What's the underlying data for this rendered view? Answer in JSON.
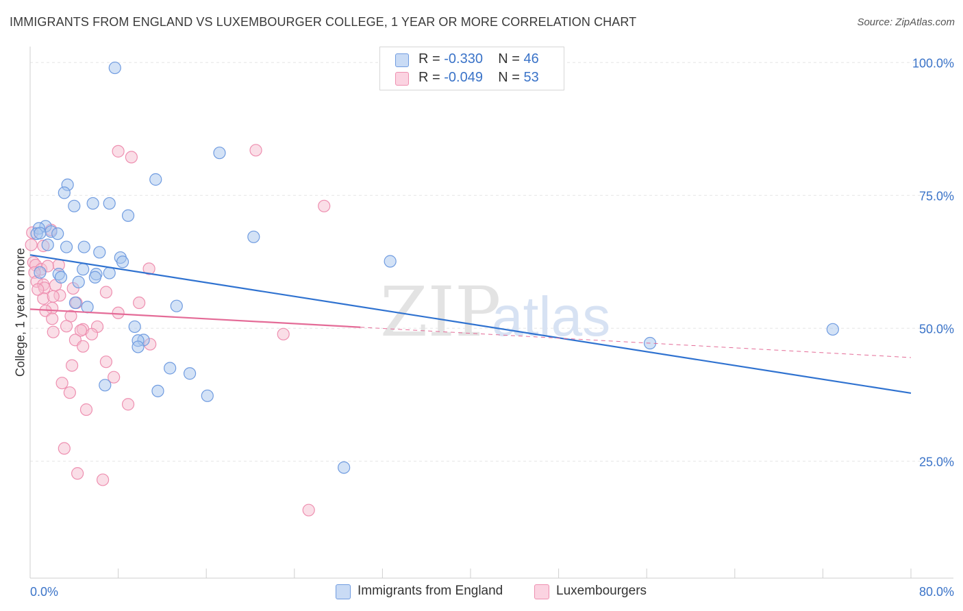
{
  "title": "IMMIGRANTS FROM ENGLAND VS LUXEMBOURGER COLLEGE, 1 YEAR OR MORE CORRELATION CHART",
  "source": "Source: ZipAtlas.com",
  "watermark": {
    "zip": "ZIP",
    "atlas": "atlas"
  },
  "colors": {
    "blue_fill": "#a8c6ee",
    "blue_stroke": "#6f9be0",
    "blue_line": "#2f72d0",
    "pink_fill": "#f6bdd0",
    "pink_stroke": "#ee8fb0",
    "pink_line": "#e46b97",
    "tick_label": "#3a73c8",
    "grid": "#e6e6e6"
  },
  "legend": [
    {
      "r_label": "R =",
      "r_value": "-0.330",
      "n_label": "N =",
      "n_value": "46"
    },
    {
      "r_label": "R =",
      "r_value": "-0.049",
      "n_label": "N =",
      "n_value": "53"
    }
  ],
  "chart_data": {
    "type": "scatter",
    "title": "IMMIGRANTS FROM ENGLAND VS LUXEMBOURGER COLLEGE, 1 YEAR OR MORE CORRELATION CHART",
    "xlabel": "",
    "ylabel": "College, 1 year or more",
    "xlim": [
      0,
      80
    ],
    "ylim": [
      3,
      103
    ],
    "x_tick_labels": [
      {
        "value": 0,
        "label": "0.0%"
      },
      {
        "value": 80,
        "label": "80.0%"
      }
    ],
    "y_tick_labels": [
      {
        "value": 100,
        "label": "100.0%"
      },
      {
        "value": 75,
        "label": "75.0%"
      },
      {
        "value": 50,
        "label": "50.0%"
      },
      {
        "value": 25,
        "label": "25.0%"
      }
    ],
    "y_gridlines": [
      100,
      75,
      50,
      25
    ],
    "x_minor_ticks": [
      8,
      16,
      24,
      32,
      40,
      48,
      56,
      64,
      72,
      80
    ],
    "series": [
      {
        "name": "Immigrants from England",
        "color": "blue",
        "points": [
          [
            7.7,
            99.0
          ],
          [
            17.2,
            83.0
          ],
          [
            11.4,
            78.0
          ],
          [
            3.4,
            77.0
          ],
          [
            3.1,
            75.5
          ],
          [
            4.0,
            73.0
          ],
          [
            7.2,
            73.5
          ],
          [
            5.7,
            73.5
          ],
          [
            8.9,
            71.2
          ],
          [
            20.3,
            67.2
          ],
          [
            1.4,
            69.2
          ],
          [
            0.8,
            68.8
          ],
          [
            1.9,
            68.2
          ],
          [
            0.6,
            67.8
          ],
          [
            2.5,
            67.8
          ],
          [
            1.6,
            65.7
          ],
          [
            3.3,
            65.3
          ],
          [
            4.9,
            65.3
          ],
          [
            6.3,
            64.3
          ],
          [
            8.2,
            63.3
          ],
          [
            8.4,
            62.5
          ],
          [
            32.7,
            62.6
          ],
          [
            4.8,
            61.1
          ],
          [
            2.6,
            60.2
          ],
          [
            2.8,
            59.6
          ],
          [
            6.0,
            60.2
          ],
          [
            7.2,
            60.4
          ],
          [
            5.9,
            59.6
          ],
          [
            4.4,
            58.7
          ],
          [
            4.1,
            54.8
          ],
          [
            5.2,
            54.0
          ],
          [
            13.3,
            54.2
          ],
          [
            9.5,
            50.3
          ],
          [
            72.9,
            49.8
          ],
          [
            10.3,
            47.8
          ],
          [
            9.8,
            47.7
          ],
          [
            56.3,
            47.2
          ],
          [
            9.8,
            46.5
          ],
          [
            12.7,
            42.5
          ],
          [
            14.5,
            41.5
          ],
          [
            6.8,
            39.3
          ],
          [
            11.6,
            38.2
          ],
          [
            16.1,
            37.3
          ],
          [
            28.5,
            23.8
          ],
          [
            0.9,
            67.9
          ],
          [
            0.9,
            60.5
          ]
        ]
      },
      {
        "name": "Luxembourgers",
        "color": "pink",
        "points": [
          [
            20.5,
            83.5
          ],
          [
            8.0,
            83.3
          ],
          [
            9.2,
            82.2
          ],
          [
            26.7,
            73.0
          ],
          [
            0.2,
            68.0
          ],
          [
            1.9,
            68.5
          ],
          [
            0.1,
            65.7
          ],
          [
            1.2,
            65.5
          ],
          [
            0.3,
            62.4
          ],
          [
            0.5,
            61.9
          ],
          [
            2.6,
            61.9
          ],
          [
            10.8,
            61.2
          ],
          [
            1.0,
            61.1
          ],
          [
            0.4,
            60.5
          ],
          [
            0.6,
            58.8
          ],
          [
            1.2,
            58.2
          ],
          [
            2.3,
            58.1
          ],
          [
            1.3,
            57.6
          ],
          [
            3.9,
            57.5
          ],
          [
            6.9,
            56.8
          ],
          [
            2.7,
            56.2
          ],
          [
            1.2,
            55.6
          ],
          [
            2.1,
            56.0
          ],
          [
            9.9,
            54.8
          ],
          [
            4.2,
            54.8
          ],
          [
            2.0,
            53.8
          ],
          [
            1.4,
            53.3
          ],
          [
            8.0,
            52.9
          ],
          [
            3.7,
            52.3
          ],
          [
            2.0,
            51.8
          ],
          [
            3.3,
            50.4
          ],
          [
            6.1,
            50.3
          ],
          [
            4.8,
            49.8
          ],
          [
            2.1,
            49.3
          ],
          [
            4.6,
            49.6
          ],
          [
            5.6,
            48.9
          ],
          [
            23.0,
            48.9
          ],
          [
            4.1,
            47.8
          ],
          [
            10.9,
            47.0
          ],
          [
            4.8,
            46.6
          ],
          [
            6.9,
            43.7
          ],
          [
            3.8,
            43.0
          ],
          [
            7.6,
            40.8
          ],
          [
            2.9,
            39.7
          ],
          [
            3.6,
            37.9
          ],
          [
            8.9,
            35.7
          ],
          [
            5.1,
            34.7
          ],
          [
            3.1,
            27.4
          ],
          [
            4.3,
            22.7
          ],
          [
            6.6,
            21.5
          ],
          [
            25.3,
            15.8
          ],
          [
            1.6,
            61.7
          ],
          [
            0.7,
            57.3
          ]
        ]
      }
    ],
    "trend_lines": [
      {
        "series": "Immigrants from England",
        "x": [
          0,
          80
        ],
        "y": [
          63.8,
          37.8
        ],
        "style": "solid"
      },
      {
        "series": "Luxembourgers",
        "x": [
          0,
          30
        ],
        "y": [
          53.6,
          50.2
        ],
        "style": "solid"
      },
      {
        "series": "Luxembourgers",
        "x": [
          30,
          80
        ],
        "y": [
          50.2,
          44.5
        ],
        "style": "dashed"
      }
    ]
  }
}
